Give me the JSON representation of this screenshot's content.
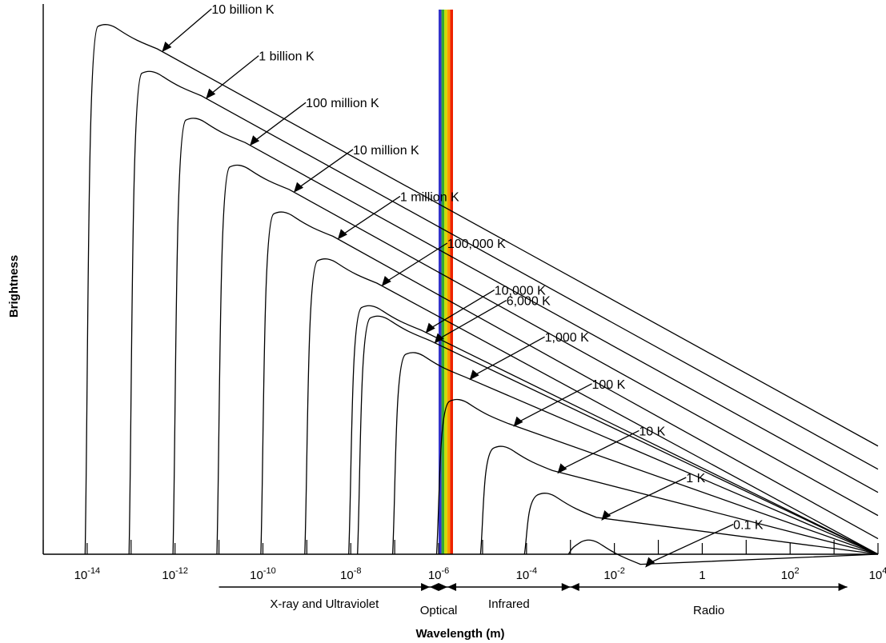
{
  "chart_data": {
    "type": "line",
    "title": "",
    "xlabel": "Wavelength (m)",
    "ylabel": "Brightness",
    "x_scale": "log",
    "xlim_exponent": [
      -15,
      4
    ],
    "x_ticks": [
      {
        "base": "10",
        "exp": "-14"
      },
      {
        "base": "10",
        "exp": "-12"
      },
      {
        "base": "10",
        "exp": "-10"
      },
      {
        "base": "10",
        "exp": "-8"
      },
      {
        "base": "10",
        "exp": "-6"
      },
      {
        "base": "10",
        "exp": "-4"
      },
      {
        "base": "10",
        "exp": "-2"
      },
      {
        "base": "1",
        "exp": ""
      },
      {
        "base": "10",
        "exp": "2"
      },
      {
        "base": "10",
        "exp": "4"
      }
    ],
    "series": [
      {
        "name": "10 billion K",
        "temperature_K": 10000000000,
        "peak_log_wavelength": -13.5
      },
      {
        "name": "1 billion K",
        "temperature_K": 1000000000,
        "peak_log_wavelength": -12.5
      },
      {
        "name": "100 million K",
        "temperature_K": 100000000,
        "peak_log_wavelength": -11.5
      },
      {
        "name": "10 million K",
        "temperature_K": 10000000,
        "peak_log_wavelength": -10.5
      },
      {
        "name": "1 million K",
        "temperature_K": 1000000,
        "peak_log_wavelength": -9.5
      },
      {
        "name": "100,000 K",
        "temperature_K": 100000,
        "peak_log_wavelength": -8.5
      },
      {
        "name": "10,000 K",
        "temperature_K": 10000,
        "peak_log_wavelength": -7.5
      },
      {
        "name": "6,000 K",
        "temperature_K": 6000,
        "peak_log_wavelength": -7.3
      },
      {
        "name": "1,000 K",
        "temperature_K": 1000,
        "peak_log_wavelength": -6.5
      },
      {
        "name": "100 K",
        "temperature_K": 100,
        "peak_log_wavelength": -5.5
      },
      {
        "name": "10 K",
        "temperature_K": 10,
        "peak_log_wavelength": -4.5
      },
      {
        "name": "1 K",
        "temperature_K": 1,
        "peak_log_wavelength": -3.5
      },
      {
        "name": "0.1 K",
        "temperature_K": 0.1,
        "peak_log_wavelength": -2.5
      }
    ],
    "bands": [
      {
        "name": "X-ray and Ultraviolet",
        "from_log": -11,
        "to_log": -6.2
      },
      {
        "name": "Optical",
        "from_log": -6.2,
        "to_log": -5.8
      },
      {
        "name": "Infrared",
        "from_log": -5.8,
        "to_log": -3
      },
      {
        "name": "Radio",
        "from_log": -3,
        "to_log": 3.3
      }
    ],
    "visible_band_colors": [
      "#3333cc",
      "#33aa33",
      "#ccdd00",
      "#ff9900",
      "#ee2200"
    ],
    "grid": false,
    "legend": "none"
  }
}
